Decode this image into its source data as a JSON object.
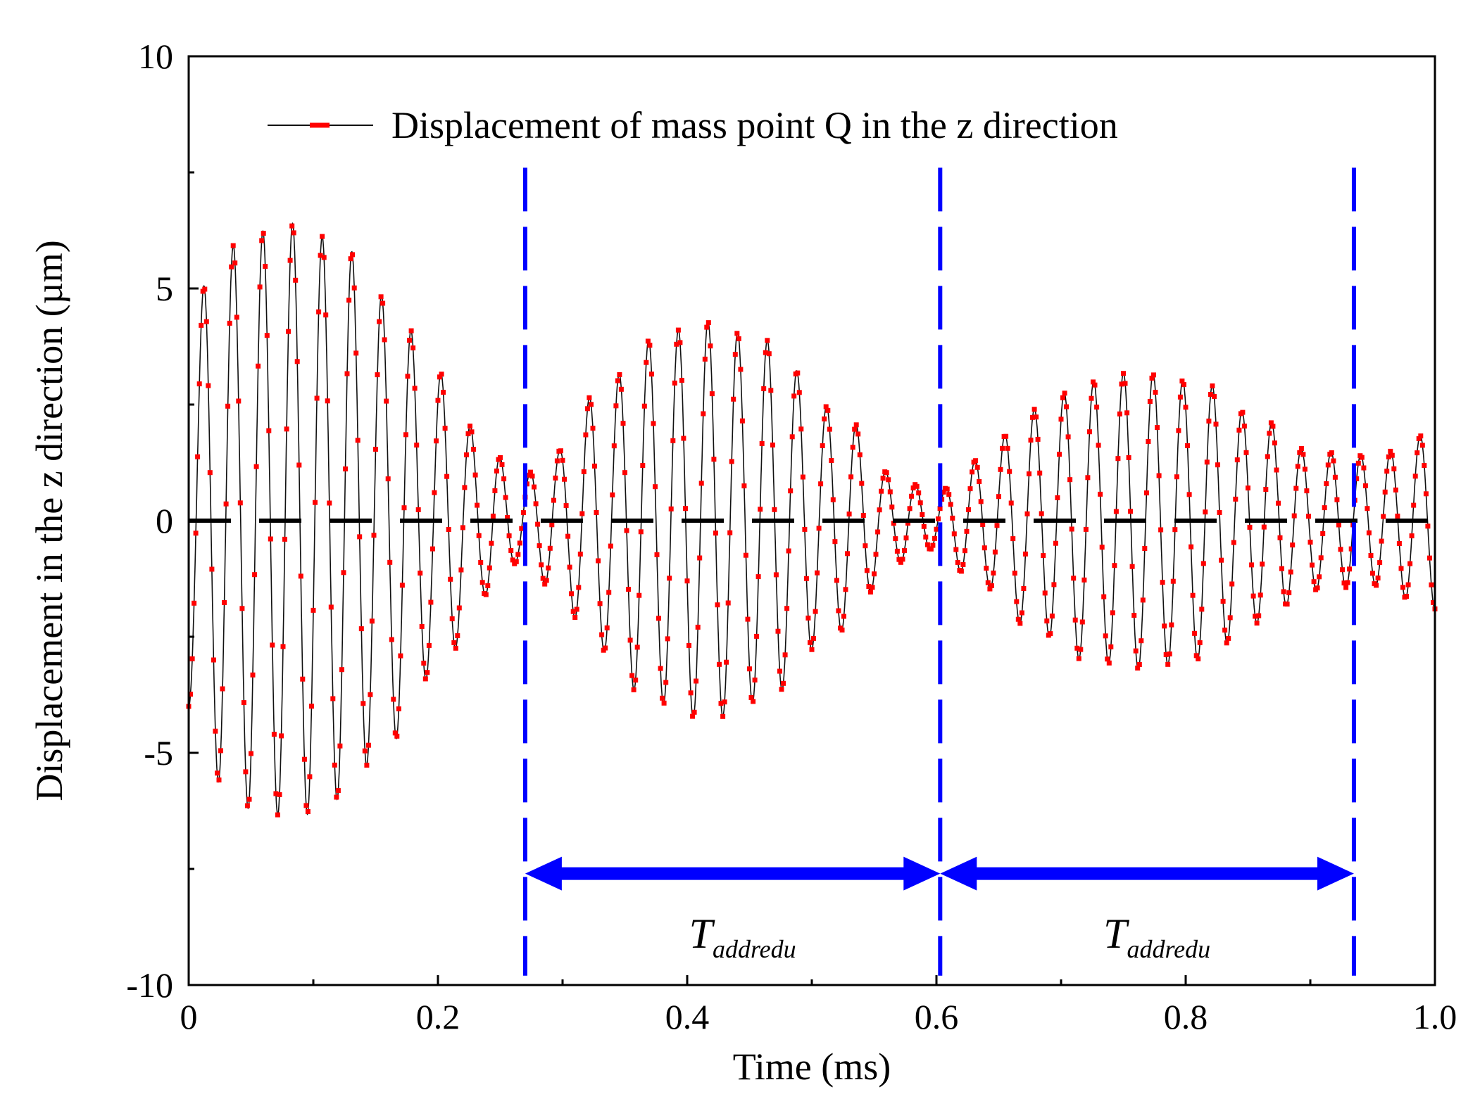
{
  "chart_data": {
    "type": "line",
    "title": "",
    "xlabel": "Time (ms)",
    "ylabel": "Displacement in the z direction (µm)",
    "xlim": [
      0,
      1.0
    ],
    "ylim": [
      -10,
      10
    ],
    "xticks": [
      {
        "value": 0,
        "label": "0"
      },
      {
        "value": 0.2,
        "label": "0.2"
      },
      {
        "value": 0.4,
        "label": "0.4"
      },
      {
        "value": 0.6,
        "label": "0.6"
      },
      {
        "value": 0.8,
        "label": "0.8"
      },
      {
        "value": 1.0,
        "label": "1.0"
      }
    ],
    "yticks": [
      {
        "value": -10,
        "label": "-10"
      },
      {
        "value": -5,
        "label": "-5"
      },
      {
        "value": 0,
        "label": "0"
      },
      {
        "value": 5,
        "label": "5"
      },
      {
        "value": 10,
        "label": "10"
      }
    ],
    "grid": false,
    "legend": {
      "position": "top",
      "label": "Displacement of mass point Q in the z direction"
    },
    "series": [
      {
        "name": "Displacement of mass point Q in the z direction",
        "color": "#ff0000",
        "carrier_frequency_khz": 42,
        "envelope": [
          {
            "t": 0.0,
            "a": 4.0
          },
          {
            "t": 0.02,
            "a": 5.6
          },
          {
            "t": 0.05,
            "a": 6.2
          },
          {
            "t": 0.085,
            "a": 6.4
          },
          {
            "t": 0.12,
            "a": 6.0
          },
          {
            "t": 0.16,
            "a": 4.8
          },
          {
            "t": 0.2,
            "a": 3.2
          },
          {
            "t": 0.24,
            "a": 1.6
          },
          {
            "t": 0.265,
            "a": 0.9
          },
          {
            "t": 0.29,
            "a": 1.4
          },
          {
            "t": 0.33,
            "a": 2.8
          },
          {
            "t": 0.37,
            "a": 3.9
          },
          {
            "t": 0.415,
            "a": 4.3
          },
          {
            "t": 0.46,
            "a": 3.9
          },
          {
            "t": 0.52,
            "a": 2.4
          },
          {
            "t": 0.57,
            "a": 0.9
          },
          {
            "t": 0.6,
            "a": 0.6
          },
          {
            "t": 0.63,
            "a": 1.3
          },
          {
            "t": 0.68,
            "a": 2.4
          },
          {
            "t": 0.72,
            "a": 3.0
          },
          {
            "t": 0.76,
            "a": 3.2
          },
          {
            "t": 0.81,
            "a": 3.0
          },
          {
            "t": 0.86,
            "a": 2.2
          },
          {
            "t": 0.9,
            "a": 1.5
          },
          {
            "t": 0.95,
            "a": 1.4
          },
          {
            "t": 1.0,
            "a": 1.9
          }
        ]
      }
    ],
    "reference_lines": [
      {
        "name": "zero-line",
        "orientation": "horizontal",
        "value": 0,
        "color": "#000000",
        "style": "dashed"
      },
      {
        "name": "marker-1",
        "orientation": "vertical",
        "value": 0.27,
        "color": "#0000ff",
        "style": "dashed"
      },
      {
        "name": "marker-2",
        "orientation": "vertical",
        "value": 0.603,
        "color": "#0000ff",
        "style": "dashed"
      },
      {
        "name": "marker-3",
        "orientation": "vertical",
        "value": 0.935,
        "color": "#0000ff",
        "style": "dashed"
      }
    ],
    "annotations": [
      {
        "type": "double-arrow",
        "x_start": 0.27,
        "x_end": 0.603,
        "y": -7.6,
        "color": "#0000ff",
        "label_main": "T",
        "label_sub": "addredu",
        "label_y": -9.2
      },
      {
        "type": "double-arrow",
        "x_start": 0.603,
        "x_end": 0.935,
        "y": -7.6,
        "color": "#0000ff",
        "label_main": "T",
        "label_sub": "addredu",
        "label_y": -9.2
      }
    ]
  }
}
